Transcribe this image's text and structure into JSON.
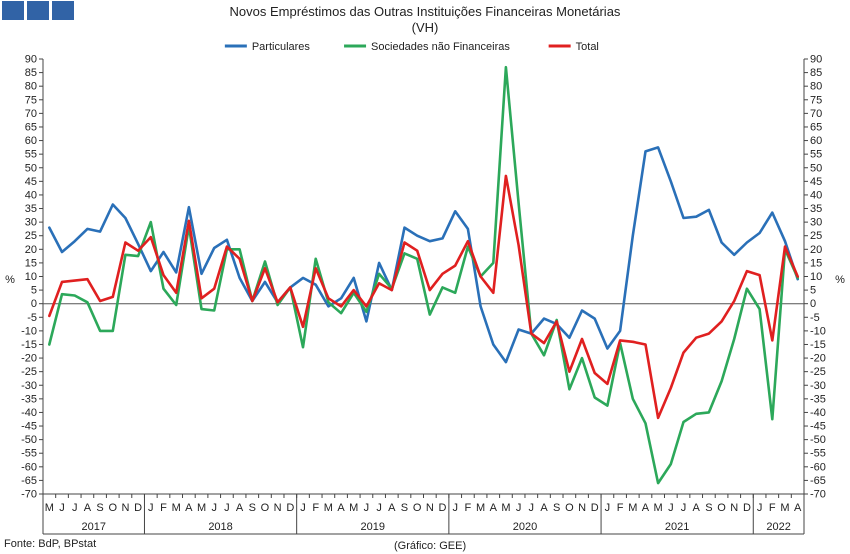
{
  "logo": {
    "color": "#3163a6",
    "squares": 3
  },
  "chart_data": {
    "type": "line",
    "title": "Novos Empréstimos das Outras Instituições Financeiras Monetárias",
    "subtitle": "(VH)",
    "ylabel_left": "%",
    "ylabel_right": "%",
    "ylim": [
      -70,
      90
    ],
    "ytick_step": 5,
    "grid": false,
    "legend_position": "top-center",
    "month_labels": [
      "M",
      "J",
      "J",
      "A",
      "S",
      "O",
      "N",
      "D",
      "J",
      "F",
      "M",
      "A",
      "M",
      "J",
      "J",
      "A",
      "S",
      "O",
      "N",
      "D",
      "J",
      "F",
      "M",
      "A",
      "M",
      "J",
      "J",
      "A",
      "S",
      "O",
      "N",
      "D",
      "J",
      "F",
      "M",
      "A",
      "M",
      "J",
      "J",
      "A",
      "S",
      "O",
      "N",
      "D",
      "J",
      "F",
      "M",
      "A",
      "M",
      "J",
      "J",
      "A",
      "S",
      "O",
      "N",
      "D",
      "J",
      "F",
      "M",
      "A"
    ],
    "year_groups": [
      {
        "label": "2017",
        "count": 8
      },
      {
        "label": "2018",
        "count": 12
      },
      {
        "label": "2019",
        "count": 12
      },
      {
        "label": "2020",
        "count": 12
      },
      {
        "label": "2021",
        "count": 12
      },
      {
        "label": "2022",
        "count": 4
      }
    ],
    "series": [
      {
        "name": "Particulares",
        "color": "#2a70b8",
        "values": [
          28,
          19,
          23,
          27.5,
          26.5,
          36.5,
          31.5,
          22,
          12,
          19,
          11.5,
          35.5,
          11,
          20.5,
          23.5,
          9.5,
          1,
          8,
          0.5,
          6,
          9.5,
          7,
          -1,
          2,
          9.5,
          -6.5,
          15,
          5,
          28,
          25,
          23,
          24,
          34,
          27.5,
          -1,
          -15,
          -21.5,
          -9.5,
          -11,
          -5.5,
          -7.5,
          -12.5,
          -2.5,
          -5.5,
          -16.5,
          -10,
          25,
          56,
          57.5,
          45,
          31.5,
          32,
          34.5,
          22.5,
          18,
          22.5,
          26,
          33.5,
          23,
          9
        ]
      },
      {
        "name": "Sociedades não Financeiras",
        "color": "#2ca85a",
        "values": [
          -15,
          3.5,
          3,
          0.5,
          -10,
          -10,
          18,
          17.5,
          30,
          5.5,
          -0.5,
          28.5,
          -2,
          -2.5,
          20,
          20,
          1,
          15.5,
          -0.5,
          6,
          -16,
          16.5,
          0.5,
          -3.5,
          4,
          -3,
          11,
          5.5,
          18.5,
          16.5,
          -4,
          6,
          4,
          21,
          10,
          15,
          87,
          37,
          -11,
          -19,
          -6,
          -31.5,
          -20,
          -34.5,
          -37.5,
          -14.5,
          -35,
          -44,
          -66,
          -59,
          -43.5,
          -40.5,
          -40,
          -28.5,
          -13,
          5.5,
          -2,
          -42.5,
          20,
          9.5
        ]
      },
      {
        "name": "Total",
        "color": "#e02020",
        "values": [
          -4.5,
          8,
          8.5,
          9,
          1,
          2.5,
          22.5,
          19.5,
          24.5,
          10.5,
          4,
          30.5,
          2,
          5.5,
          21,
          16.5,
          1,
          13,
          0.5,
          6,
          -8.5,
          13,
          2,
          -1,
          5,
          -1,
          7.5,
          5,
          22.5,
          19.5,
          5,
          11,
          14,
          23,
          10,
          4,
          47,
          21.5,
          -11,
          -14.5,
          -6.5,
          -25,
          -13,
          -25.5,
          -29.5,
          -13.5,
          -14,
          -15,
          -42,
          -31,
          -18,
          -12.5,
          -11,
          -6.5,
          1,
          12,
          10.5,
          -13.5,
          21,
          10
        ]
      }
    ]
  },
  "footer": {
    "source": "Fonte: BdP, BPstat",
    "credit": "(Gráfico: GEE)"
  }
}
